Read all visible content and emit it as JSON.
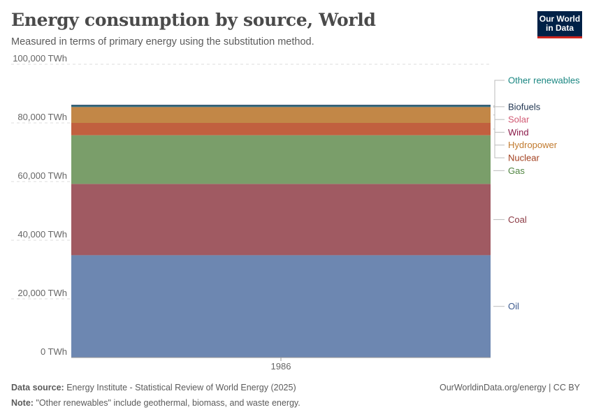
{
  "header": {
    "title": "Energy consumption by source, World",
    "subtitle": "Measured in terms of primary energy using the substitution method.",
    "logo_line1": "Our World",
    "logo_line2": "in Data"
  },
  "footer": {
    "source_label": "Data source:",
    "source_text": "Energy Institute - Statistical Review of World Energy (2025)",
    "note_label": "Note:",
    "note_text": "\"Other renewables\" include geothermal, biomass, and waste energy.",
    "credit": "OurWorldinData.org/energy | CC BY"
  },
  "chart_data": {
    "type": "area",
    "stacked": true,
    "x": [
      "1986"
    ],
    "ylim": [
      0,
      100000
    ],
    "yticks": [
      0,
      20000,
      40000,
      60000,
      80000,
      100000
    ],
    "ytick_labels": [
      "0 TWh",
      "20,000 TWh",
      "40,000 TWh",
      "60,000 TWh",
      "80,000 TWh",
      "100,000 TWh"
    ],
    "grid": true,
    "legend_position": "right",
    "series": [
      {
        "name": "Oil",
        "values": [
          34900
        ],
        "color": "#6d87b1",
        "label_color": "#3d5a8e"
      },
      {
        "name": "Coal",
        "values": [
          24300
        ],
        "color": "#a05a62",
        "label_color": "#8b3a44"
      },
      {
        "name": "Gas",
        "values": [
          16600
        ],
        "color": "#7a9e6a",
        "label_color": "#4f8440"
      },
      {
        "name": "Nuclear",
        "values": [
          4200
        ],
        "color": "#c1603f",
        "label_color": "#a2401f"
      },
      {
        "name": "Hydropower",
        "values": [
          5400
        ],
        "color": "#c28747",
        "label_color": "#c17a2e"
      },
      {
        "name": "Wind",
        "values": [
          10
        ],
        "color": "#8b1a4a",
        "label_color": "#8b1a4a"
      },
      {
        "name": "Solar",
        "values": [
          5
        ],
        "color": "#d66a81",
        "label_color": "#d15a74"
      },
      {
        "name": "Biofuels",
        "values": [
          200
        ],
        "color": "#2c4466",
        "label_color": "#1f3450"
      },
      {
        "name": "Other renewables",
        "values": [
          400
        ],
        "color": "#2b8a86",
        "label_color": "#1b8782"
      }
    ]
  }
}
